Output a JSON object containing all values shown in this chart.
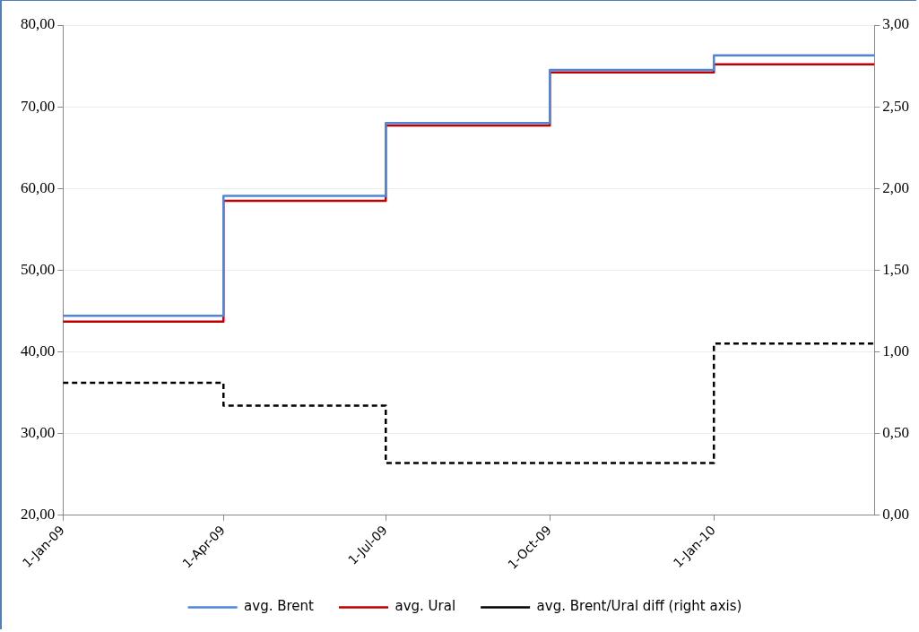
{
  "chart_data": {
    "type": "step",
    "x": [
      "2009-01-01",
      "2009-04-01",
      "2009-07-01",
      "2009-10-01",
      "2010-01-01",
      "2010-04-01"
    ],
    "series": [
      {
        "name": "avg. Brent",
        "color": "#4f86d9",
        "values": [
          44.4,
          59.1,
          68.0,
          74.5,
          76.3,
          76.3
        ]
      },
      {
        "name": "avg. Ural",
        "color": "#c00000",
        "values": [
          43.7,
          58.5,
          67.7,
          74.2,
          75.2,
          75.2
        ]
      },
      {
        "name": "avg. Brent/Ural diff (right axis)",
        "color": "#000000",
        "axis": "y2",
        "line_style": "dashed",
        "values": [
          0.81,
          0.67,
          0.32,
          0.32,
          1.05,
          1.05
        ]
      }
    ],
    "xlim": [
      "2009-01-01",
      "2010-04-01"
    ],
    "xticks": [
      {
        "value": "2009-01-01",
        "label": "1-Jan-09"
      },
      {
        "value": "2009-04-01",
        "label": "1-Apr-09"
      },
      {
        "value": "2009-07-01",
        "label": "1-Jul-09"
      },
      {
        "value": "2009-10-01",
        "label": "1-Oct-09"
      },
      {
        "value": "2010-01-01",
        "label": "1-Jan-10"
      }
    ],
    "ylim": [
      20,
      80
    ],
    "yticks": [
      {
        "value": 20,
        "label": "20,00"
      },
      {
        "value": 30,
        "label": "30,00"
      },
      {
        "value": 40,
        "label": "40,00"
      },
      {
        "value": 50,
        "label": "50,00"
      },
      {
        "value": 60,
        "label": "60,00"
      },
      {
        "value": 70,
        "label": "70,00"
      },
      {
        "value": 80,
        "label": "80,00"
      }
    ],
    "y2lim": [
      0,
      3
    ],
    "y2ticks": [
      {
        "value": 0,
        "label": "0,00"
      },
      {
        "value": 0.5,
        "label": "0,50"
      },
      {
        "value": 1,
        "label": "1,00"
      },
      {
        "value": 1.5,
        "label": "1,50"
      },
      {
        "value": 2,
        "label": "2,00"
      },
      {
        "value": 2.5,
        "label": "2,50"
      },
      {
        "value": 3,
        "label": "3,00"
      }
    ],
    "grid": "y",
    "legend": "bottom",
    "marker": "none"
  }
}
